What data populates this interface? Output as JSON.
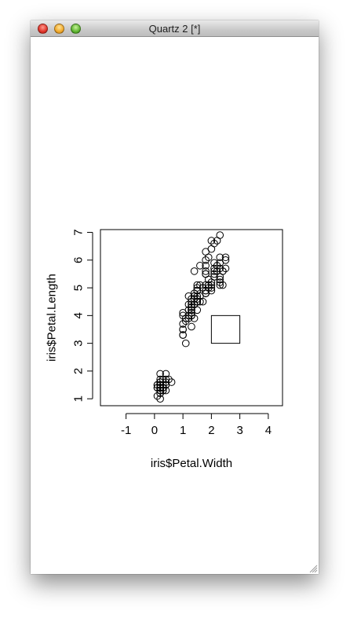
{
  "window": {
    "title": "Quartz 2 [*]"
  },
  "chart_data": {
    "type": "scatter",
    "xlabel": "iris$Petal.Width",
    "ylabel": "iris$Petal.Length",
    "xlim": [
      -1.9,
      4.5
    ],
    "ylim": [
      0.75,
      7.1
    ],
    "x_ticks": [
      "-1",
      "0",
      "1",
      "2",
      "3",
      "4"
    ],
    "y_ticks": [
      "1",
      "2",
      "3",
      "4",
      "5",
      "6",
      "7"
    ],
    "grid": false,
    "legend": "none",
    "marker": "open circle",
    "rect": {
      "x0": 2,
      "x1": 3,
      "y0": 3,
      "y1": 4
    },
    "x": [
      0.2,
      0.2,
      0.2,
      0.2,
      0.2,
      0.4,
      0.3,
      0.2,
      0.2,
      0.1,
      0.2,
      0.2,
      0.1,
      0.1,
      0.2,
      0.4,
      0.4,
      0.3,
      0.3,
      0.3,
      0.2,
      0.4,
      0.2,
      0.5,
      0.2,
      0.2,
      0.4,
      0.2,
      0.2,
      0.2,
      0.2,
      0.4,
      0.1,
      0.2,
      0.2,
      0.2,
      0.2,
      0.1,
      0.2,
      0.2,
      0.3,
      0.3,
      0.2,
      0.6,
      0.4,
      0.3,
      0.2,
      0.2,
      0.2,
      0.2,
      1.4,
      1.5,
      1.5,
      1.3,
      1.5,
      1.3,
      1.6,
      1.0,
      1.3,
      1.4,
      1.0,
      1.5,
      1.0,
      1.4,
      1.3,
      1.4,
      1.5,
      1.0,
      1.5,
      1.1,
      1.8,
      1.3,
      1.5,
      1.2,
      1.3,
      1.4,
      1.4,
      1.7,
      1.5,
      1.0,
      1.1,
      1.0,
      1.2,
      1.6,
      1.5,
      1.6,
      1.5,
      1.3,
      1.3,
      1.3,
      1.2,
      1.4,
      1.2,
      1.0,
      1.3,
      1.2,
      1.3,
      1.3,
      1.1,
      1.3,
      2.5,
      1.9,
      2.1,
      1.8,
      2.2,
      2.1,
      1.7,
      1.8,
      1.8,
      2.5,
      2.0,
      1.9,
      2.1,
      2.0,
      2.4,
      2.3,
      1.8,
      2.2,
      2.3,
      1.5,
      2.3,
      2.0,
      2.0,
      1.8,
      2.1,
      1.8,
      1.8,
      1.8,
      2.1,
      1.6,
      1.9,
      2.0,
      2.2,
      1.5,
      1.4,
      2.3,
      2.4,
      1.8,
      1.8,
      2.1,
      2.4,
      2.3,
      1.9,
      2.3,
      2.5,
      2.3,
      1.9,
      2.0,
      2.3,
      1.8
    ],
    "y": [
      1.4,
      1.4,
      1.3,
      1.5,
      1.4,
      1.7,
      1.4,
      1.5,
      1.4,
      1.5,
      1.5,
      1.6,
      1.4,
      1.1,
      1.2,
      1.5,
      1.3,
      1.4,
      1.7,
      1.5,
      1.7,
      1.5,
      1.0,
      1.7,
      1.9,
      1.6,
      1.6,
      1.5,
      1.4,
      1.6,
      1.6,
      1.5,
      1.5,
      1.4,
      1.5,
      1.2,
      1.3,
      1.4,
      1.3,
      1.5,
      1.3,
      1.3,
      1.3,
      1.6,
      1.9,
      1.4,
      1.6,
      1.4,
      1.5,
      1.4,
      4.7,
      4.5,
      4.9,
      4.0,
      4.6,
      4.5,
      4.7,
      3.3,
      4.6,
      3.9,
      3.5,
      4.2,
      4.0,
      4.7,
      3.6,
      4.4,
      4.5,
      4.1,
      4.5,
      3.9,
      4.8,
      4.0,
      4.9,
      4.7,
      4.3,
      4.4,
      4.8,
      5.0,
      4.5,
      3.5,
      3.8,
      3.7,
      3.9,
      5.1,
      4.5,
      4.5,
      4.7,
      4.4,
      4.1,
      4.0,
      4.4,
      4.6,
      4.0,
      3.3,
      4.2,
      4.2,
      4.2,
      4.3,
      3.0,
      4.1,
      6.0,
      5.1,
      5.9,
      5.6,
      5.8,
      6.6,
      4.5,
      6.3,
      5.8,
      6.1,
      5.1,
      5.3,
      5.5,
      5.0,
      5.1,
      5.3,
      5.5,
      6.7,
      6.9,
      5.0,
      5.7,
      4.9,
      6.7,
      4.9,
      5.7,
      6.0,
      4.8,
      4.9,
      5.6,
      5.8,
      6.1,
      6.4,
      5.6,
      5.1,
      5.6,
      6.1,
      5.6,
      5.5,
      4.8,
      5.4,
      5.6,
      5.1,
      5.1,
      5.9,
      5.7,
      5.2,
      5.0,
      5.2,
      5.4,
      5.1
    ]
  }
}
